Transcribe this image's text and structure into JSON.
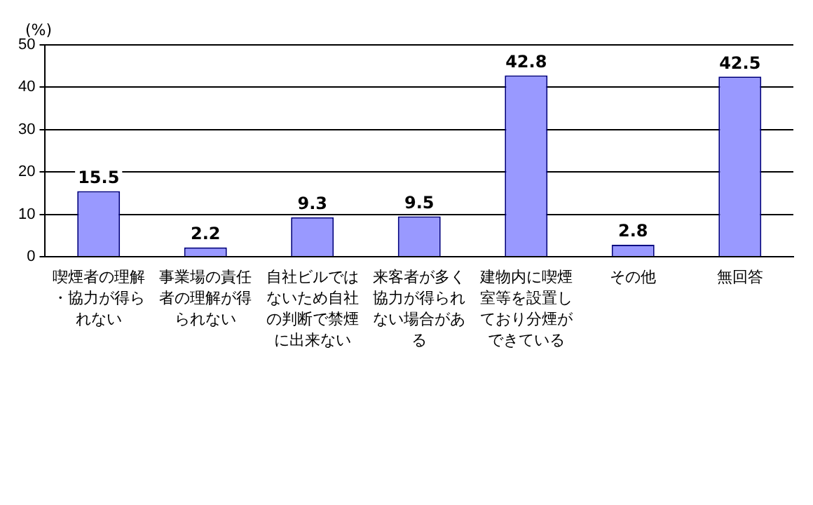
{
  "chart_data": {
    "type": "bar",
    "ylabel": "(%)",
    "categories": [
      "喫煙者の理解・協力が得られない",
      "事業場の責任者の理解が得られない",
      "自社ビルではないため自社の判断で禁煙に出来ない",
      "来客者が多く協力が得られない場合がある",
      "建物内に喫煙室等を設置しており分煙ができている",
      "その他",
      "無回答"
    ],
    "values": [
      15.5,
      2.2,
      9.3,
      9.5,
      42.8,
      2.8,
      42.5
    ],
    "color": "#9999ff",
    "ylim": [
      0,
      50
    ],
    "yticks": [
      0,
      10,
      20,
      30,
      40,
      50
    ],
    "grid": "y",
    "data_labels": true,
    "legend": false
  }
}
